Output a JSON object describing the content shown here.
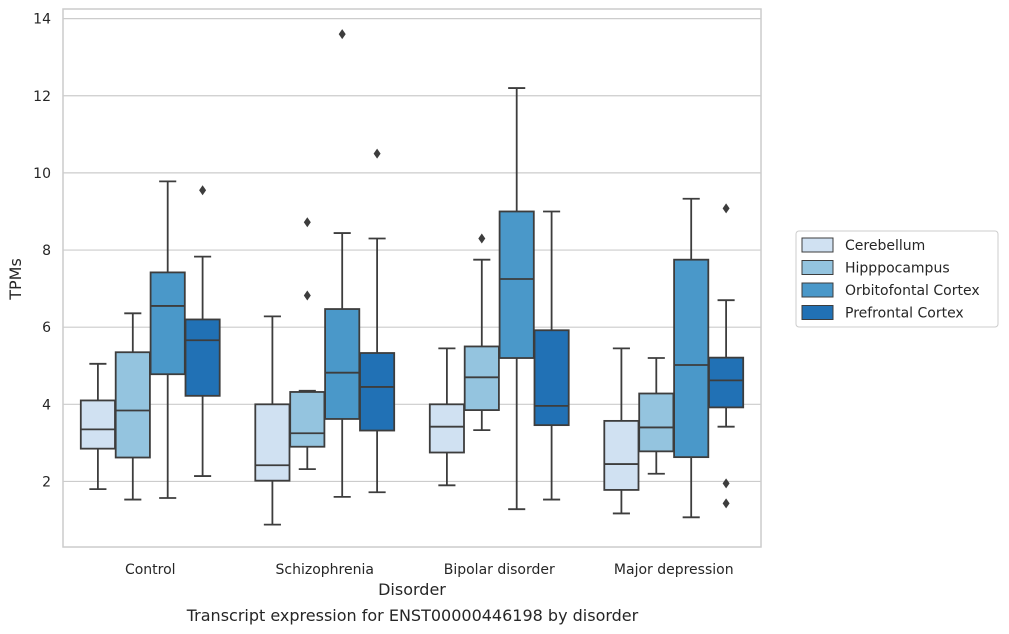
{
  "caption": "Transcript expression for ENST00000446198 by disorder",
  "chart_data": {
    "type": "box",
    "xlabel": "Disorder",
    "ylabel": "TPMs",
    "ylim": [
      0.3,
      14.25
    ],
    "yticks": [
      2,
      4,
      6,
      8,
      10,
      12,
      14
    ],
    "grid": "horizontal",
    "legend_position": "right",
    "categories": [
      "Control",
      "Schizophrenia",
      "Bipolar disorder",
      "Major depression"
    ],
    "series": [
      {
        "name": "Cerebellum",
        "color": "#d0e1f2",
        "boxes": [
          {
            "whislo": 1.8,
            "q1": 2.85,
            "med": 3.35,
            "q3": 4.1,
            "whishi": 5.05,
            "fliers": []
          },
          {
            "whislo": 0.88,
            "q1": 2.02,
            "med": 2.42,
            "q3": 4.0,
            "whishi": 6.28,
            "fliers": []
          },
          {
            "whislo": 1.9,
            "q1": 2.75,
            "med": 3.42,
            "q3": 4.0,
            "whishi": 5.45,
            "fliers": []
          },
          {
            "whislo": 1.17,
            "q1": 1.78,
            "med": 2.45,
            "q3": 3.57,
            "whishi": 5.45,
            "fliers": []
          }
        ]
      },
      {
        "name": "Hipppocampus",
        "color": "#94c4df",
        "boxes": [
          {
            "whislo": 1.53,
            "q1": 2.62,
            "med": 3.84,
            "q3": 5.35,
            "whishi": 6.36,
            "fliers": []
          },
          {
            "whislo": 2.32,
            "q1": 2.9,
            "med": 3.25,
            "q3": 4.32,
            "whishi": 4.35,
            "fliers": [
              6.82,
              8.72
            ]
          },
          {
            "whislo": 3.33,
            "q1": 3.85,
            "med": 4.7,
            "q3": 5.5,
            "whishi": 7.75,
            "fliers": [
              8.3
            ]
          },
          {
            "whislo": 2.2,
            "q1": 2.78,
            "med": 3.4,
            "q3": 4.28,
            "whishi": 5.2,
            "fliers": []
          }
        ]
      },
      {
        "name": "Orbitofontal Cortex",
        "color": "#4a98c9",
        "boxes": [
          {
            "whislo": 1.57,
            "q1": 4.78,
            "med": 6.55,
            "q3": 7.42,
            "whishi": 9.78,
            "fliers": []
          },
          {
            "whislo": 1.6,
            "q1": 3.62,
            "med": 4.82,
            "q3": 6.47,
            "whishi": 8.44,
            "fliers": [
              13.6
            ]
          },
          {
            "whislo": 1.28,
            "q1": 5.2,
            "med": 7.25,
            "q3": 9.0,
            "whishi": 12.2,
            "fliers": []
          },
          {
            "whislo": 1.07,
            "q1": 2.63,
            "med": 5.02,
            "q3": 7.75,
            "whishi": 9.33,
            "fliers": []
          }
        ]
      },
      {
        "name": "Prefrontal Cortex",
        "color": "#2171b5",
        "boxes": [
          {
            "whislo": 2.14,
            "q1": 4.22,
            "med": 5.66,
            "q3": 6.2,
            "whishi": 7.83,
            "fliers": [
              9.55
            ]
          },
          {
            "whislo": 1.72,
            "q1": 3.32,
            "med": 4.45,
            "q3": 5.33,
            "whishi": 8.3,
            "fliers": [
              10.5
            ]
          },
          {
            "whislo": 1.53,
            "q1": 3.46,
            "med": 3.96,
            "q3": 5.92,
            "whishi": 9.0,
            "fliers": []
          },
          {
            "whislo": 3.42,
            "q1": 3.92,
            "med": 4.62,
            "q3": 5.21,
            "whishi": 6.7,
            "fliers": [
              1.43,
              1.95,
              9.08
            ]
          }
        ]
      }
    ]
  }
}
